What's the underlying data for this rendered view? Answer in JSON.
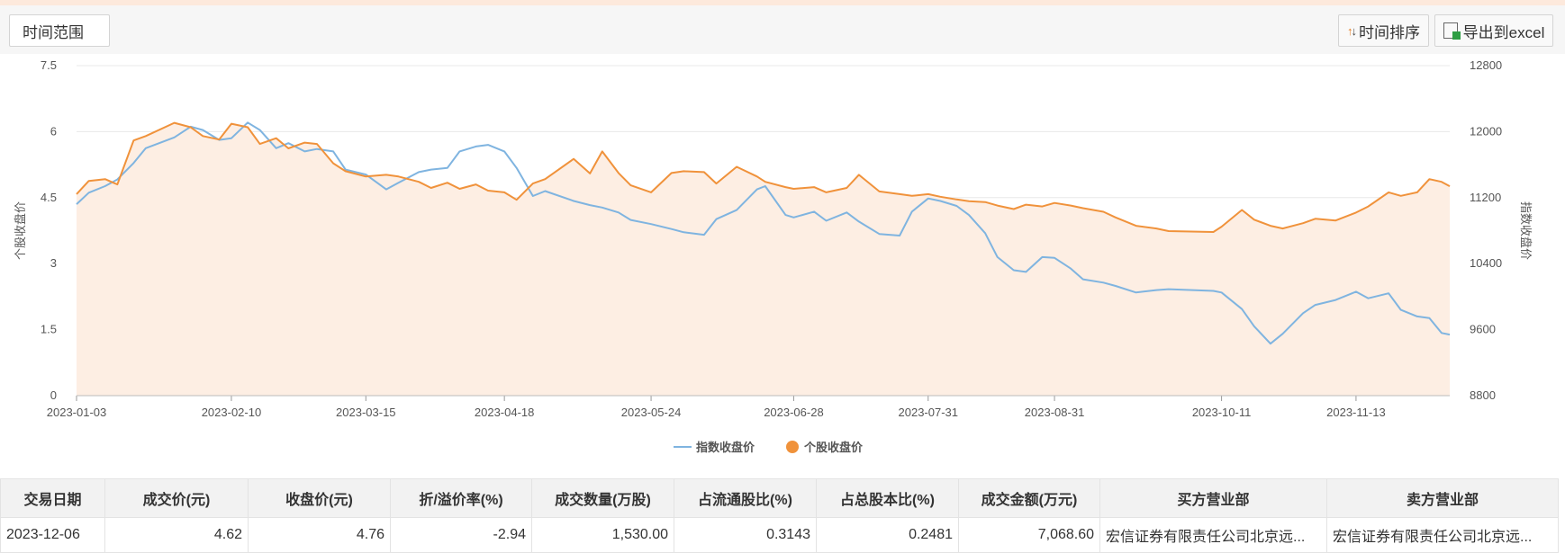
{
  "toolbar": {
    "range_label": "时间范围",
    "sort_label": "时间排序",
    "export_label": "导出到excel"
  },
  "colors": {
    "index": "#7fb4e0",
    "stock": "#f0923b",
    "area": "#fdeee3"
  },
  "chart_data": {
    "type": "line",
    "ylabel": "个股收盘价",
    "y2label": "指数收盘价",
    "ylim": [
      0,
      7.5
    ],
    "y2lim": [
      8800,
      12800
    ],
    "yticks": [
      "0",
      "1.5",
      "3",
      "4.5",
      "6",
      "7.5"
    ],
    "y2ticks": [
      "8800",
      "9600",
      "10400",
      "11200",
      "12000",
      "12800"
    ],
    "x_start": "2023-01-03",
    "x_end": "2023-12-06",
    "xticks": [
      "2023-01-03",
      "2023-02-10",
      "2023-03-15",
      "2023-04-18",
      "2023-05-24",
      "2023-06-28",
      "2023-07-31",
      "2023-08-31",
      "2023-10-11",
      "2023-11-13"
    ],
    "grid": true,
    "legend": "bottom-center",
    "series": [
      {
        "name": "指数收盘价",
        "axis": "right",
        "points": [
          [
            "2023-01-03",
            11120
          ],
          [
            "2023-01-06",
            11260
          ],
          [
            "2023-01-10",
            11340
          ],
          [
            "2023-01-13",
            11420
          ],
          [
            "2023-01-17",
            11620
          ],
          [
            "2023-01-20",
            11800
          ],
          [
            "2023-01-27",
            11930
          ],
          [
            "2023-01-31",
            12060
          ],
          [
            "2023-02-03",
            12020
          ],
          [
            "2023-02-07",
            11900
          ],
          [
            "2023-02-10",
            11920
          ],
          [
            "2023-02-14",
            12110
          ],
          [
            "2023-02-17",
            12020
          ],
          [
            "2023-02-21",
            11800
          ],
          [
            "2023-02-24",
            11860
          ],
          [
            "2023-02-28",
            11760
          ],
          [
            "2023-03-03",
            11790
          ],
          [
            "2023-03-07",
            11760
          ],
          [
            "2023-03-10",
            11540
          ],
          [
            "2023-03-15",
            11480
          ],
          [
            "2023-03-20",
            11300
          ],
          [
            "2023-03-23",
            11380
          ],
          [
            "2023-03-28",
            11510
          ],
          [
            "2023-03-31",
            11540
          ],
          [
            "2023-04-04",
            11560
          ],
          [
            "2023-04-07",
            11760
          ],
          [
            "2023-04-11",
            11820
          ],
          [
            "2023-04-14",
            11840
          ],
          [
            "2023-04-18",
            11760
          ],
          [
            "2023-04-21",
            11560
          ],
          [
            "2023-04-25",
            11220
          ],
          [
            "2023-04-28",
            11280
          ],
          [
            "2023-05-05",
            11160
          ],
          [
            "2023-05-09",
            11110
          ],
          [
            "2023-05-12",
            11080
          ],
          [
            "2023-05-16",
            11020
          ],
          [
            "2023-05-19",
            10930
          ],
          [
            "2023-05-24",
            10880
          ],
          [
            "2023-05-29",
            10820
          ],
          [
            "2023-06-01",
            10780
          ],
          [
            "2023-06-06",
            10750
          ],
          [
            "2023-06-09",
            10940
          ],
          [
            "2023-06-14",
            11050
          ],
          [
            "2023-06-19",
            11300
          ],
          [
            "2023-06-21",
            11340
          ],
          [
            "2023-06-26",
            10990
          ],
          [
            "2023-06-28",
            10960
          ],
          [
            "2023-07-03",
            11030
          ],
          [
            "2023-07-06",
            10920
          ],
          [
            "2023-07-11",
            11020
          ],
          [
            "2023-07-14",
            10910
          ],
          [
            "2023-07-19",
            10760
          ],
          [
            "2023-07-24",
            10740
          ],
          [
            "2023-07-27",
            11030
          ],
          [
            "2023-07-31",
            11190
          ],
          [
            "2023-08-03",
            11160
          ],
          [
            "2023-08-07",
            11100
          ],
          [
            "2023-08-10",
            10990
          ],
          [
            "2023-08-14",
            10770
          ],
          [
            "2023-08-17",
            10480
          ],
          [
            "2023-08-21",
            10320
          ],
          [
            "2023-08-24",
            10300
          ],
          [
            "2023-08-28",
            10480
          ],
          [
            "2023-08-31",
            10470
          ],
          [
            "2023-09-04",
            10340
          ],
          [
            "2023-09-07",
            10210
          ],
          [
            "2023-09-12",
            10170
          ],
          [
            "2023-09-15",
            10130
          ],
          [
            "2023-09-20",
            10050
          ],
          [
            "2023-09-25",
            10080
          ],
          [
            "2023-09-28",
            10090
          ],
          [
            "2023-10-09",
            10070
          ],
          [
            "2023-10-11",
            10050
          ],
          [
            "2023-10-16",
            9850
          ],
          [
            "2023-10-19",
            9640
          ],
          [
            "2023-10-23",
            9430
          ],
          [
            "2023-10-26",
            9550
          ],
          [
            "2023-10-31",
            9800
          ],
          [
            "2023-11-03",
            9900
          ],
          [
            "2023-11-08",
            9960
          ],
          [
            "2023-11-13",
            10060
          ],
          [
            "2023-11-16",
            9980
          ],
          [
            "2023-11-21",
            10040
          ],
          [
            "2023-11-24",
            9840
          ],
          [
            "2023-11-28",
            9760
          ],
          [
            "2023-12-01",
            9740
          ],
          [
            "2023-12-04",
            9560
          ],
          [
            "2023-12-06",
            9540
          ]
        ]
      },
      {
        "name": "个股收盘价",
        "axis": "left",
        "points": [
          [
            "2023-01-03",
            4.58
          ],
          [
            "2023-01-06",
            4.88
          ],
          [
            "2023-01-10",
            4.92
          ],
          [
            "2023-01-13",
            4.8
          ],
          [
            "2023-01-17",
            5.8
          ],
          [
            "2023-01-20",
            5.9
          ],
          [
            "2023-01-27",
            6.2
          ],
          [
            "2023-01-31",
            6.1
          ],
          [
            "2023-02-03",
            5.9
          ],
          [
            "2023-02-07",
            5.82
          ],
          [
            "2023-02-10",
            6.18
          ],
          [
            "2023-02-14",
            6.1
          ],
          [
            "2023-02-17",
            5.72
          ],
          [
            "2023-02-21",
            5.85
          ],
          [
            "2023-02-24",
            5.62
          ],
          [
            "2023-02-28",
            5.75
          ],
          [
            "2023-03-03",
            5.72
          ],
          [
            "2023-03-07",
            5.28
          ],
          [
            "2023-03-10",
            5.1
          ],
          [
            "2023-03-15",
            4.98
          ],
          [
            "2023-03-20",
            5.02
          ],
          [
            "2023-03-23",
            4.98
          ],
          [
            "2023-03-28",
            4.86
          ],
          [
            "2023-03-31",
            4.72
          ],
          [
            "2023-04-04",
            4.84
          ],
          [
            "2023-04-07",
            4.7
          ],
          [
            "2023-04-11",
            4.8
          ],
          [
            "2023-04-14",
            4.66
          ],
          [
            "2023-04-18",
            4.62
          ],
          [
            "2023-04-21",
            4.45
          ],
          [
            "2023-04-25",
            4.82
          ],
          [
            "2023-04-28",
            4.92
          ],
          [
            "2023-05-05",
            5.38
          ],
          [
            "2023-05-09",
            5.05
          ],
          [
            "2023-05-12",
            5.55
          ],
          [
            "2023-05-16",
            5.06
          ],
          [
            "2023-05-19",
            4.78
          ],
          [
            "2023-05-24",
            4.62
          ],
          [
            "2023-05-29",
            5.06
          ],
          [
            "2023-06-01",
            5.1
          ],
          [
            "2023-06-06",
            5.08
          ],
          [
            "2023-06-09",
            4.82
          ],
          [
            "2023-06-14",
            5.2
          ],
          [
            "2023-06-19",
            4.98
          ],
          [
            "2023-06-21",
            4.86
          ],
          [
            "2023-06-26",
            4.74
          ],
          [
            "2023-06-28",
            4.7
          ],
          [
            "2023-07-03",
            4.74
          ],
          [
            "2023-07-06",
            4.62
          ],
          [
            "2023-07-11",
            4.72
          ],
          [
            "2023-07-14",
            5.02
          ],
          [
            "2023-07-19",
            4.64
          ],
          [
            "2023-07-24",
            4.58
          ],
          [
            "2023-07-27",
            4.54
          ],
          [
            "2023-07-31",
            4.58
          ],
          [
            "2023-08-03",
            4.52
          ],
          [
            "2023-08-07",
            4.46
          ],
          [
            "2023-08-10",
            4.42
          ],
          [
            "2023-08-14",
            4.4
          ],
          [
            "2023-08-17",
            4.32
          ],
          [
            "2023-08-21",
            4.24
          ],
          [
            "2023-08-24",
            4.34
          ],
          [
            "2023-08-28",
            4.3
          ],
          [
            "2023-08-31",
            4.38
          ],
          [
            "2023-09-04",
            4.32
          ],
          [
            "2023-09-07",
            4.26
          ],
          [
            "2023-09-12",
            4.18
          ],
          [
            "2023-09-15",
            4.05
          ],
          [
            "2023-09-20",
            3.86
          ],
          [
            "2023-09-25",
            3.8
          ],
          [
            "2023-09-28",
            3.74
          ],
          [
            "2023-10-09",
            3.72
          ],
          [
            "2023-10-11",
            3.84
          ],
          [
            "2023-10-16",
            4.22
          ],
          [
            "2023-10-19",
            4.0
          ],
          [
            "2023-10-23",
            3.86
          ],
          [
            "2023-10-26",
            3.8
          ],
          [
            "2023-10-31",
            3.92
          ],
          [
            "2023-11-03",
            4.02
          ],
          [
            "2023-11-08",
            3.98
          ],
          [
            "2023-11-13",
            4.16
          ],
          [
            "2023-11-16",
            4.3
          ],
          [
            "2023-11-21",
            4.62
          ],
          [
            "2023-11-24",
            4.54
          ],
          [
            "2023-11-28",
            4.62
          ],
          [
            "2023-12-01",
            4.92
          ],
          [
            "2023-12-04",
            4.86
          ],
          [
            "2023-12-06",
            4.76
          ]
        ]
      }
    ]
  },
  "table": {
    "headers": [
      "交易日期",
      "成交价(元)",
      "收盘价(元)",
      "折/溢价率(%)",
      "成交数量(万股)",
      "占流通股比(%)",
      "占总股本比(%)",
      "成交金额(万元)",
      "买方营业部",
      "卖方营业部"
    ],
    "rows": [
      [
        "2023-12-06",
        "4.62",
        "4.76",
        "-2.94",
        "1,530.00",
        "0.3143",
        "0.2481",
        "7,068.60",
        "宏信证券有限责任公司北京远...",
        "宏信证券有限责任公司北京远..."
      ]
    ]
  }
}
